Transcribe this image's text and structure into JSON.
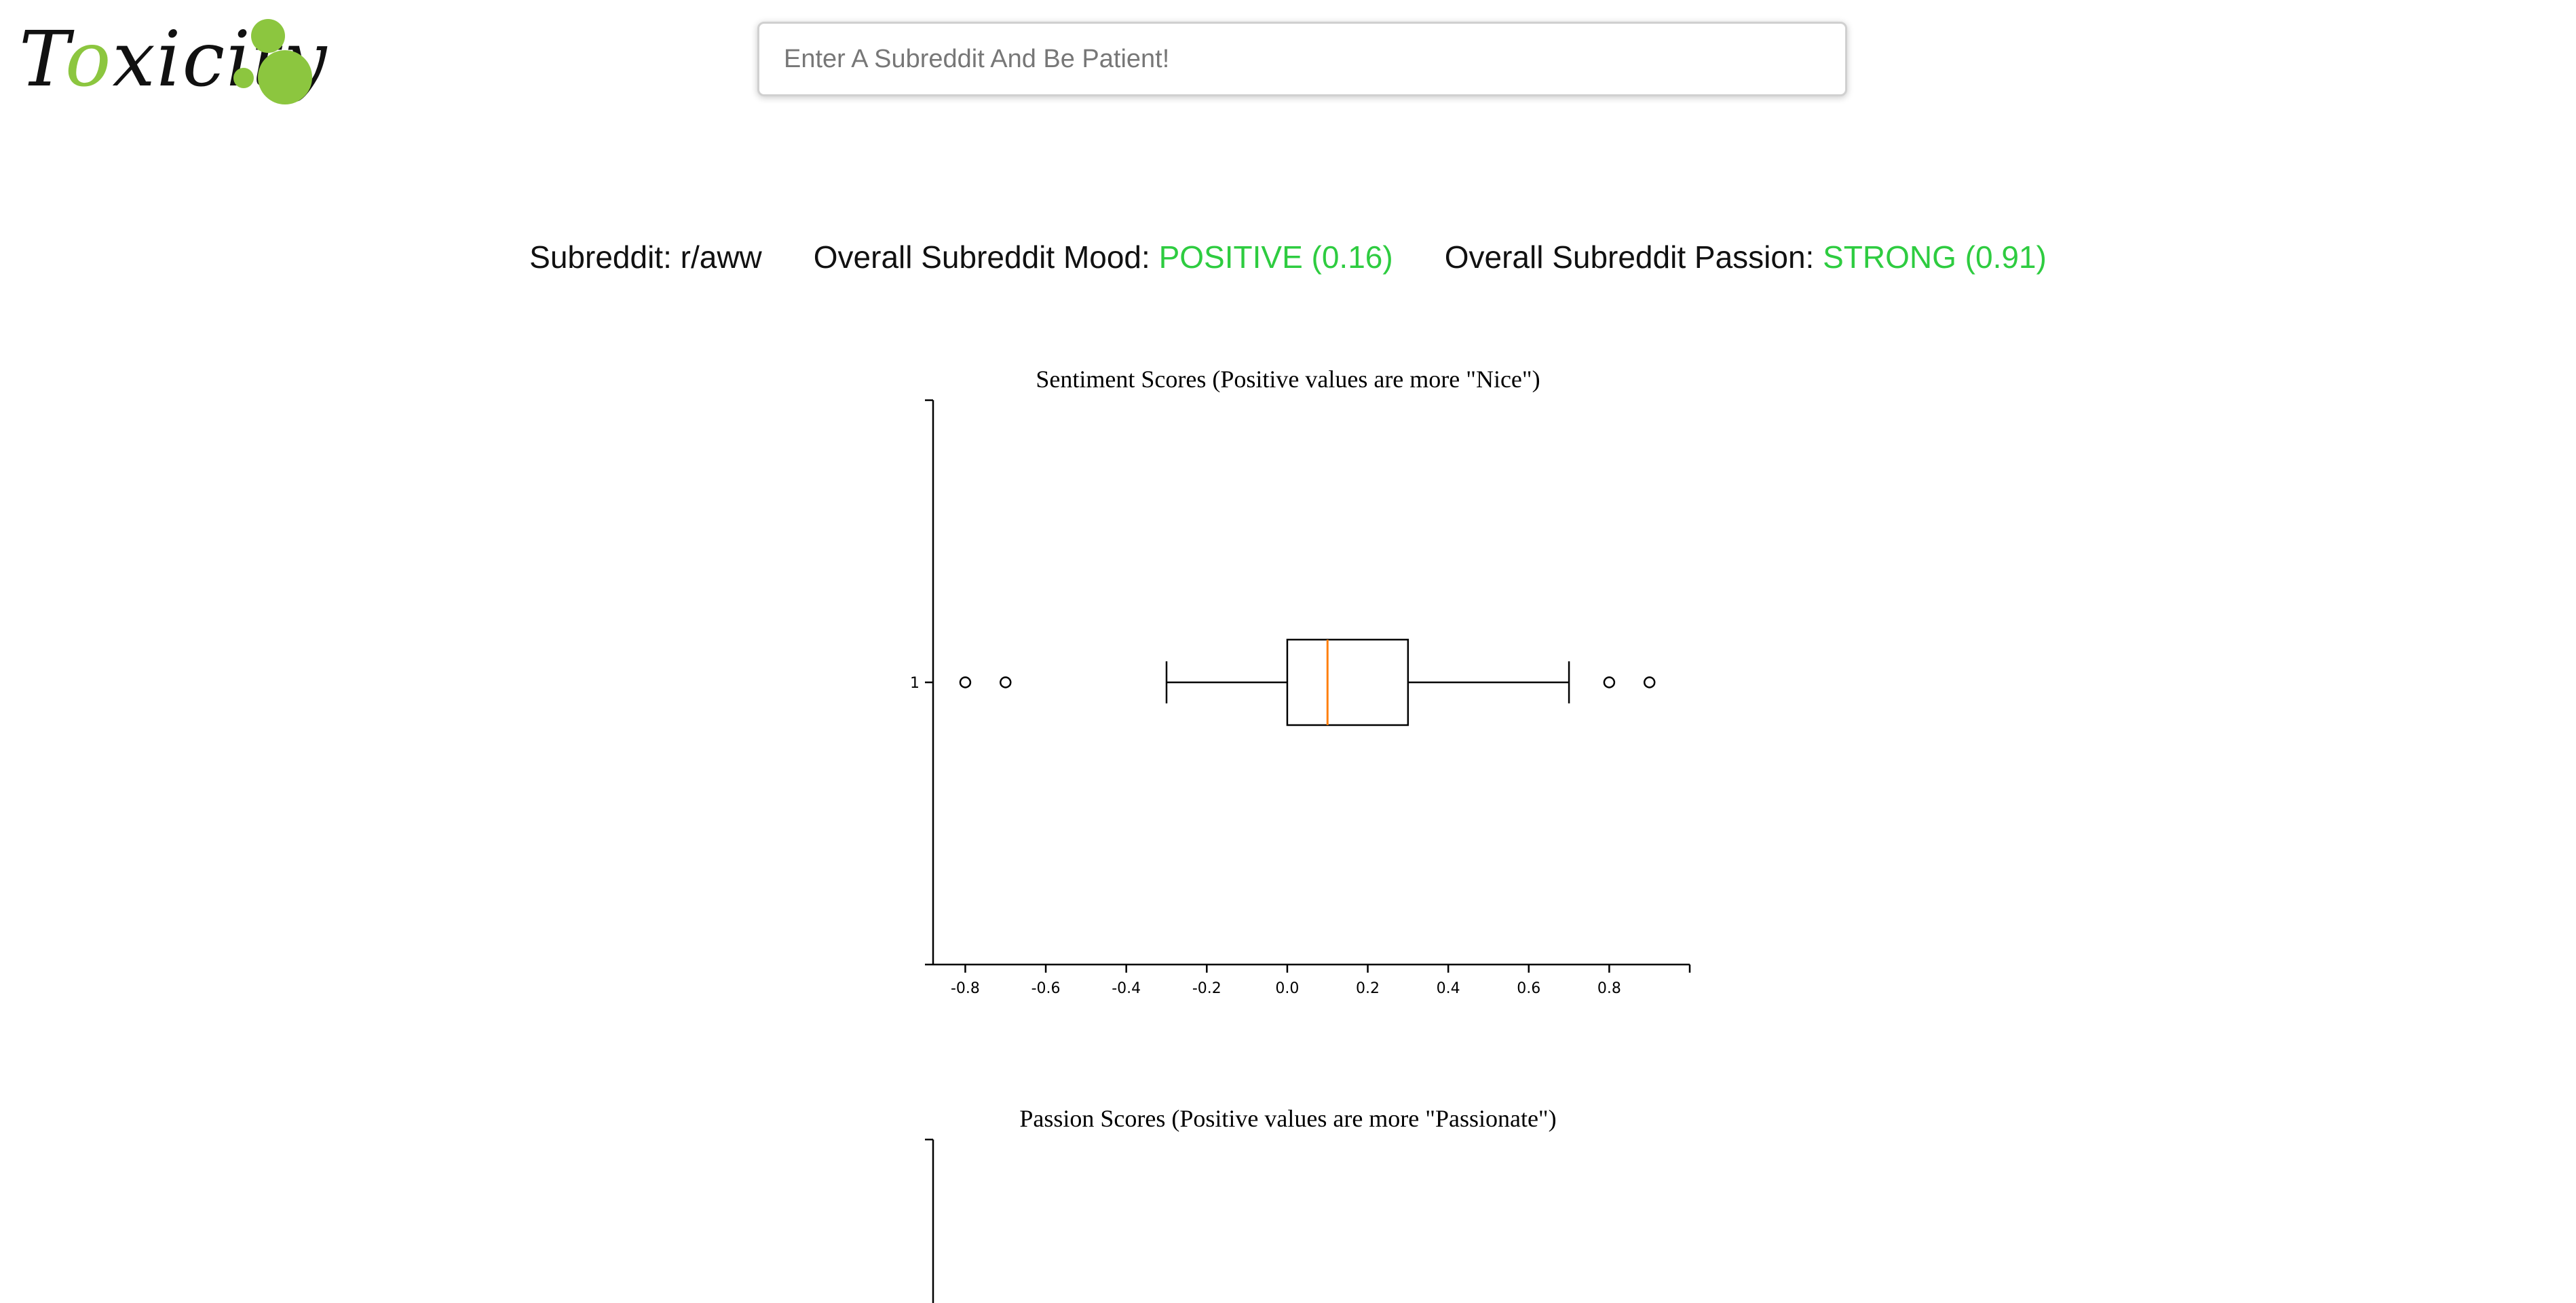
{
  "brand": {
    "logo_text_prefix": "T",
    "logo_text_o": "o",
    "logo_text_suffix": "xicity",
    "accent_color": "#8cc63f"
  },
  "search": {
    "placeholder": "Enter A Subreddit And Be Patient!",
    "value": ""
  },
  "summary": {
    "subreddit_label": "Subreddit:",
    "subreddit_value": "r/aww",
    "mood_label": "Overall Subreddit Mood:",
    "mood_value": "POSITIVE (0.16)",
    "passion_label": "Overall Subreddit Passion:",
    "passion_value": "STRONG (0.91)",
    "value_color": "#2ecc40"
  },
  "chart_data": [
    {
      "type": "box",
      "orientation": "horizontal",
      "title": "Sentiment Scores (Positive values are more \"Nice\")",
      "xlabel": "",
      "ylabel": "",
      "y_categories": [
        "1"
      ],
      "x_ticks": [
        "-0.8",
        "-0.6",
        "-0.4",
        "-0.2",
        "0.0",
        "0.2",
        "0.4",
        "0.6",
        "0.8"
      ],
      "xlim": [
        -0.88,
        1.0
      ],
      "box": {
        "whisker_low": -0.3,
        "q1": 0.0,
        "median": 0.1,
        "q3": 0.3,
        "whisker_high": 0.7
      },
      "outliers": [
        -0.8,
        -0.7,
        0.8,
        0.9
      ],
      "median_color": "#ff7f0e",
      "grid": false
    },
    {
      "type": "box",
      "orientation": "horizontal",
      "title": "Passion Scores (Positive values are more \"Passionate\")",
      "xlabel": "",
      "ylabel": ""
    }
  ]
}
